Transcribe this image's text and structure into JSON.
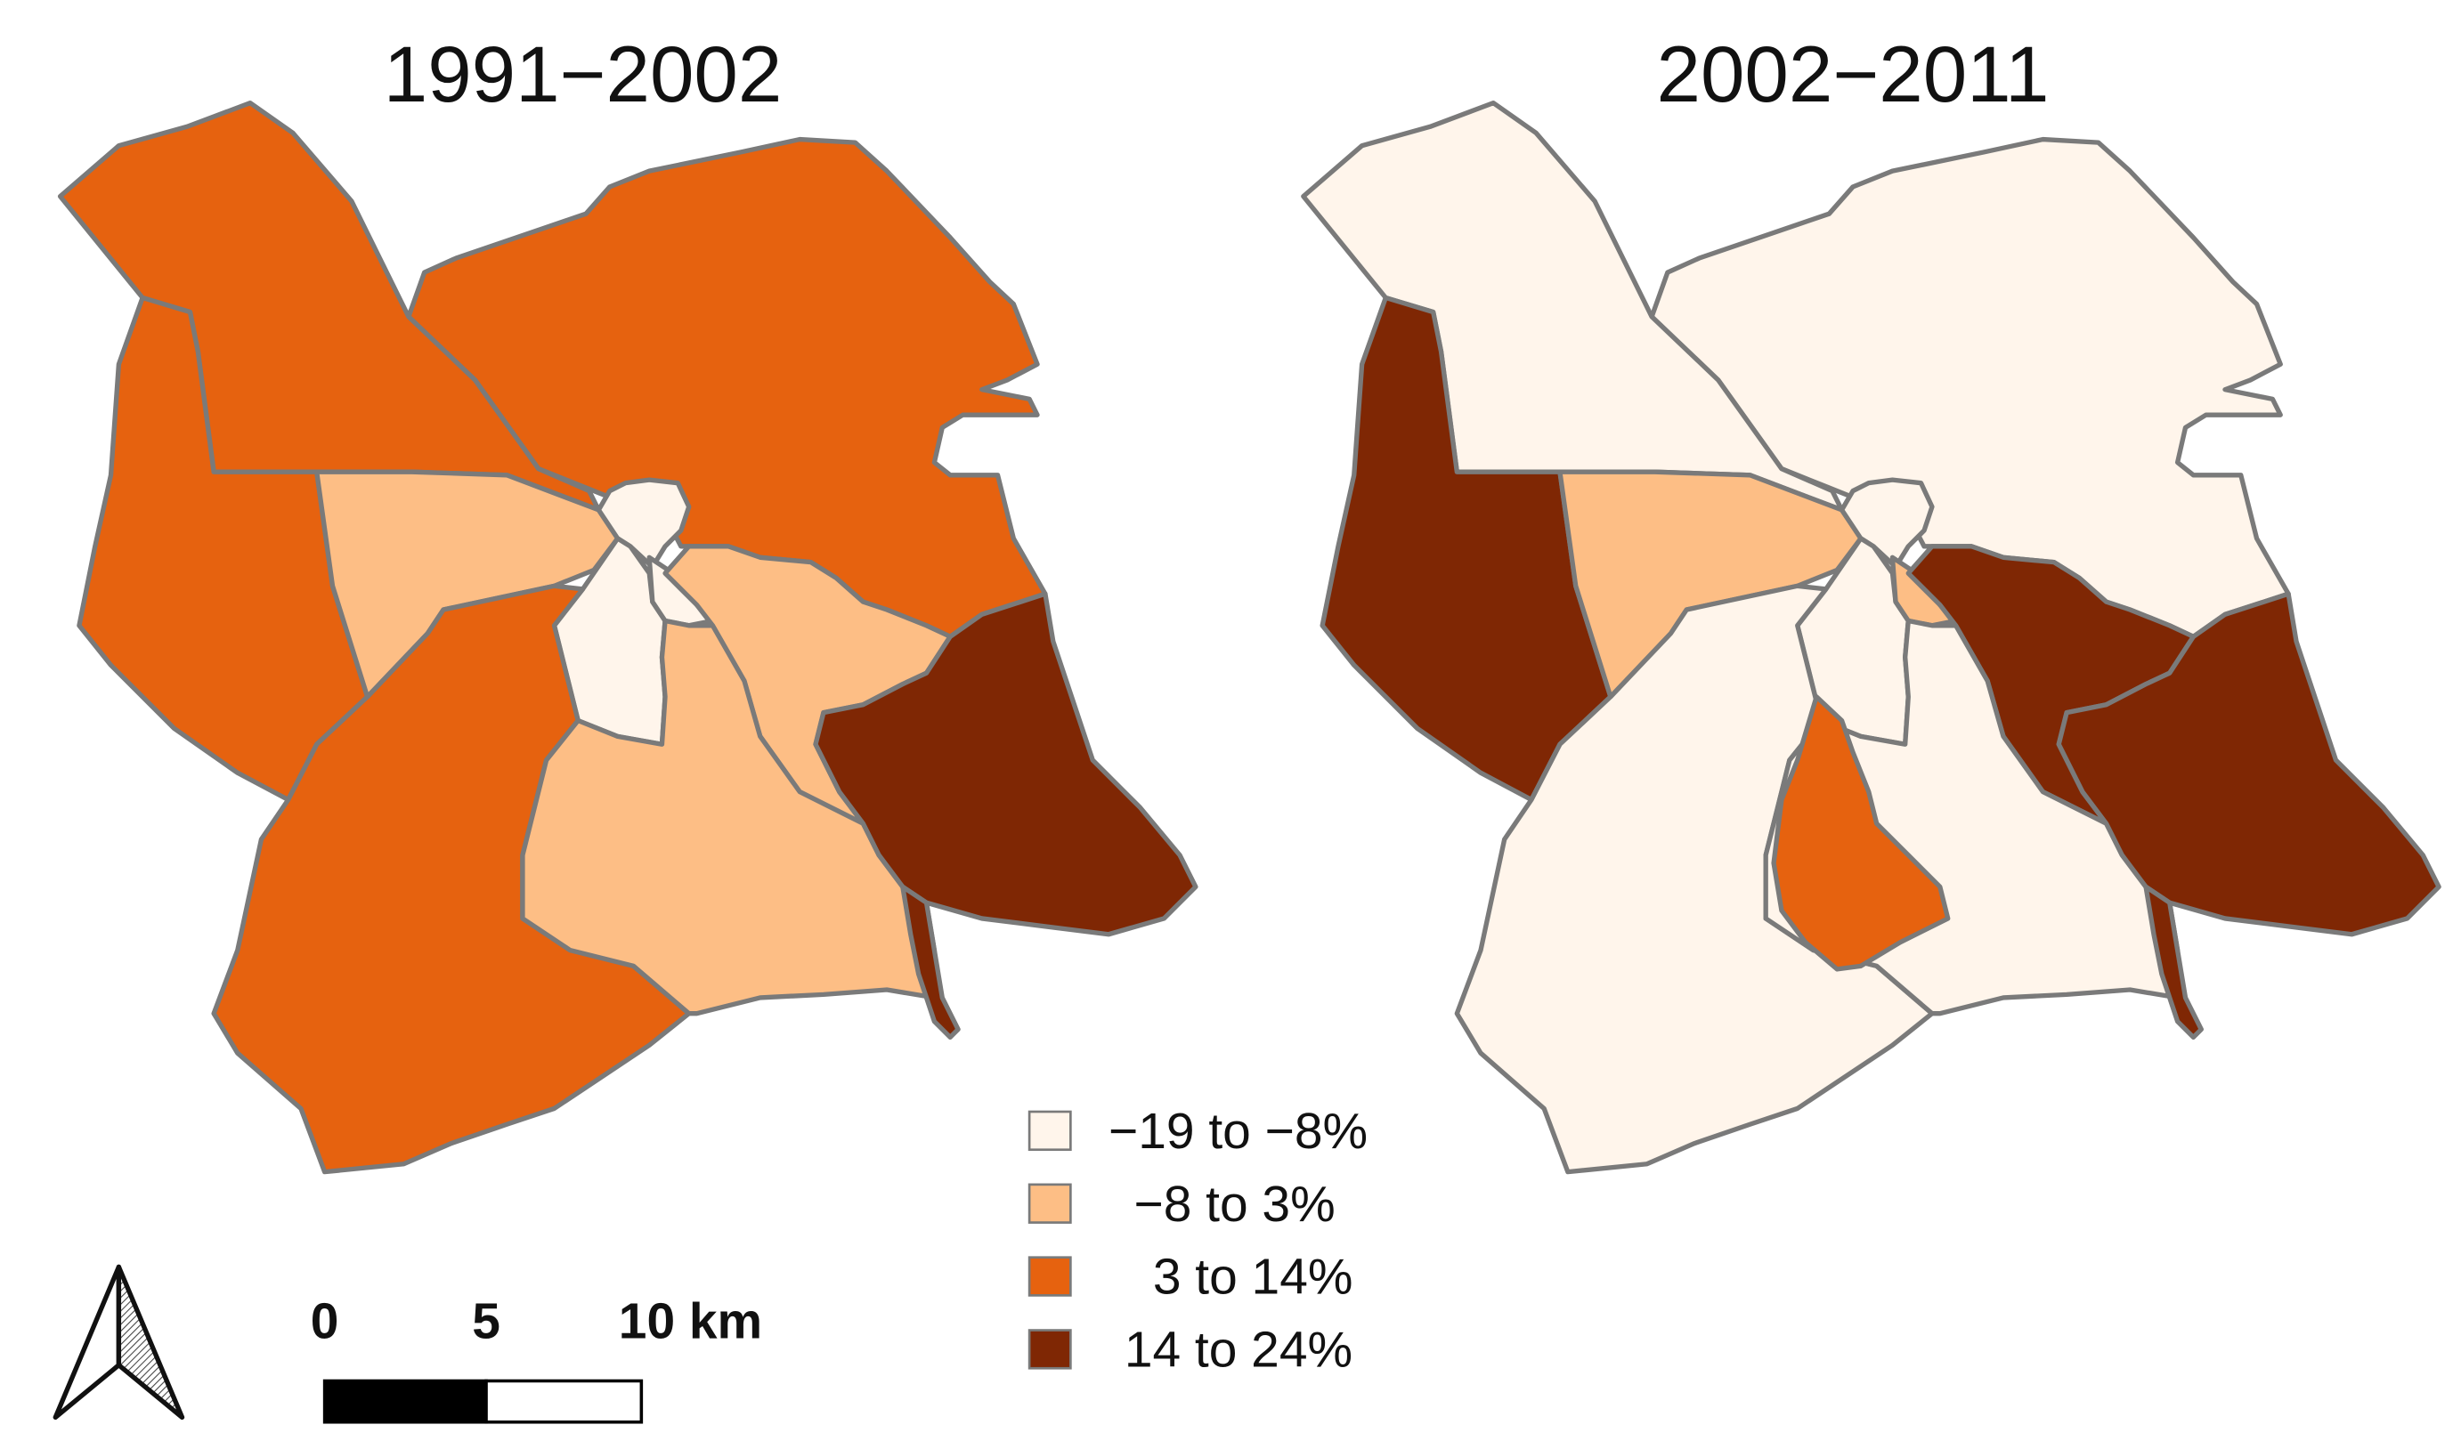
{
  "maps": [
    {
      "title": "1991−2002",
      "districts": [
        {
          "id": "northwest",
          "class": "3 to 14%"
        },
        {
          "id": "north",
          "class": "3 to 14%"
        },
        {
          "id": "west",
          "class": "3 to 14%"
        },
        {
          "id": "center-west",
          "class": "−8 to 3%"
        },
        {
          "id": "city-core",
          "class": "−19 to −8%"
        },
        {
          "id": "center-strip",
          "class": "−19 to −8%"
        },
        {
          "id": "small-center",
          "class": "−19 to −8%"
        },
        {
          "id": "center-east",
          "class": "−8 to 3%"
        },
        {
          "id": "south",
          "class": "3 to 14%"
        },
        {
          "id": "south-center",
          "class": "−8 to 3%"
        },
        {
          "id": "east",
          "class": "14 to 24%"
        }
      ]
    },
    {
      "title": "2002−2011",
      "districts": [
        {
          "id": "northwest",
          "class": "−19 to −8%"
        },
        {
          "id": "north",
          "class": "−19 to −8%"
        },
        {
          "id": "west",
          "class": "14 to 24%"
        },
        {
          "id": "center-west",
          "class": "−8 to 3%"
        },
        {
          "id": "city-core",
          "class": "−19 to −8%"
        },
        {
          "id": "center-strip",
          "class": "−19 to −8%"
        },
        {
          "id": "small-center",
          "class": "−8 to 3%"
        },
        {
          "id": "center-east",
          "class": "14 to 24%"
        },
        {
          "id": "south",
          "class": "−19 to −8%"
        },
        {
          "id": "south-center",
          "class": "3 to 14%"
        },
        {
          "id": "south-center-outer",
          "class": "−19 to −8%"
        },
        {
          "id": "east",
          "class": "14 to 24%"
        }
      ]
    }
  ],
  "legend": [
    {
      "label": "−19 to −8%",
      "color": "#fff5eb"
    },
    {
      "label": "−8 to 3%",
      "color": "#fdbe85"
    },
    {
      "label": "3 to 14%",
      "color": "#e6620f"
    },
    {
      "label": "14 to 24%",
      "color": "#7f2704"
    }
  ],
  "scale_bar": {
    "labels": [
      "0",
      "5",
      "10 km"
    ]
  },
  "north_arrow": {
    "icon": "north-arrow-icon"
  }
}
